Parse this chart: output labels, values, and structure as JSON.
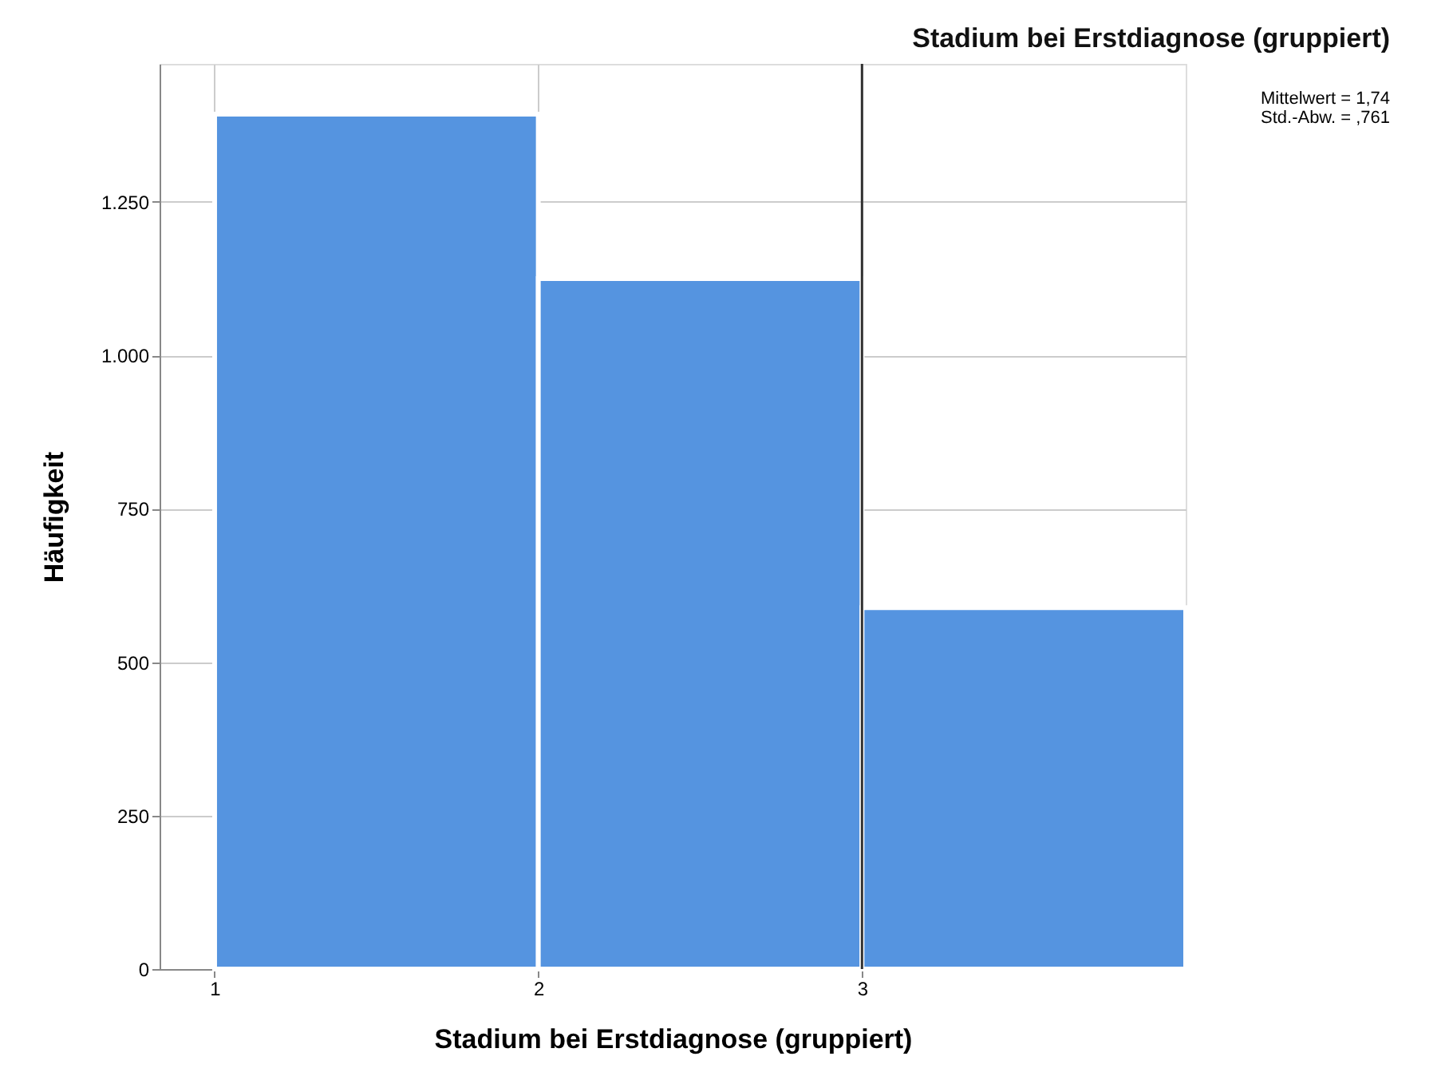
{
  "chart_data": {
    "type": "histogram",
    "title": "Stadium bei Erstdiagnose (gruppiert)",
    "xlabel": "Stadium bei Erstdiagnose (gruppiert)",
    "ylabel": "Häufigkeit",
    "bins": [
      1,
      2,
      3,
      4
    ],
    "values": [
      1393,
      1125,
      589
    ],
    "color": "#5594e0",
    "xlim": [
      0.83,
      4.0
    ],
    "xticks": [
      1,
      2,
      3
    ],
    "ylim": [
      0,
      1475
    ],
    "yticks": [
      0,
      250,
      500,
      750,
      {
        "value": 1000,
        "label": "1.000"
      },
      {
        "value": 1250,
        "label": "1.250"
      }
    ],
    "grid": true,
    "ref_lines": [
      {
        "axis": "x",
        "value": 3,
        "label": null,
        "color": "#333333"
      }
    ],
    "annotations": [
      "Mittelwert = 1,74",
      "Std.-Abw. = ,761"
    ]
  }
}
